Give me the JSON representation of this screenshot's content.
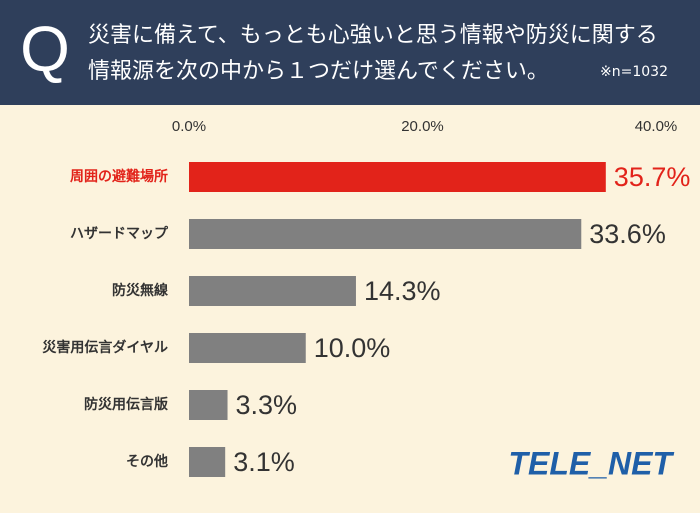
{
  "chart_data": {
    "type": "hbar",
    "q_mark": "Q",
    "title": [
      "災害に備えて、もっとも心強いと思う情報や防災に関する",
      "情報源を次の中から１つだけ選んでください。"
    ],
    "note": "※n=1032",
    "logo": "TELE_NET",
    "categories": [
      "周囲の避難場所",
      "ハザードマップ",
      "防災無線",
      "災害用伝言ダイヤル",
      "防災用伝言版",
      "その他"
    ],
    "values": [
      35.7,
      33.6,
      14.3,
      10.0,
      3.3,
      3.1
    ],
    "value_labels": [
      "35.7%",
      "33.6%",
      "14.3%",
      "10.0%",
      "3.3%",
      "3.1%"
    ],
    "colors": [
      "#e2231a",
      "#808080",
      "#808080",
      "#808080",
      "#808080",
      "#808080"
    ],
    "label_colors": [
      "#e2231a",
      "#333333",
      "#333333",
      "#333333",
      "#333333",
      "#333333"
    ],
    "xlim": [
      0,
      40
    ],
    "xticks": [
      {
        "value": 0,
        "label": "0.0%"
      },
      {
        "value": 20,
        "label": "20.0%"
      },
      {
        "value": 40,
        "label": "40.0%"
      }
    ],
    "grid": false
  }
}
